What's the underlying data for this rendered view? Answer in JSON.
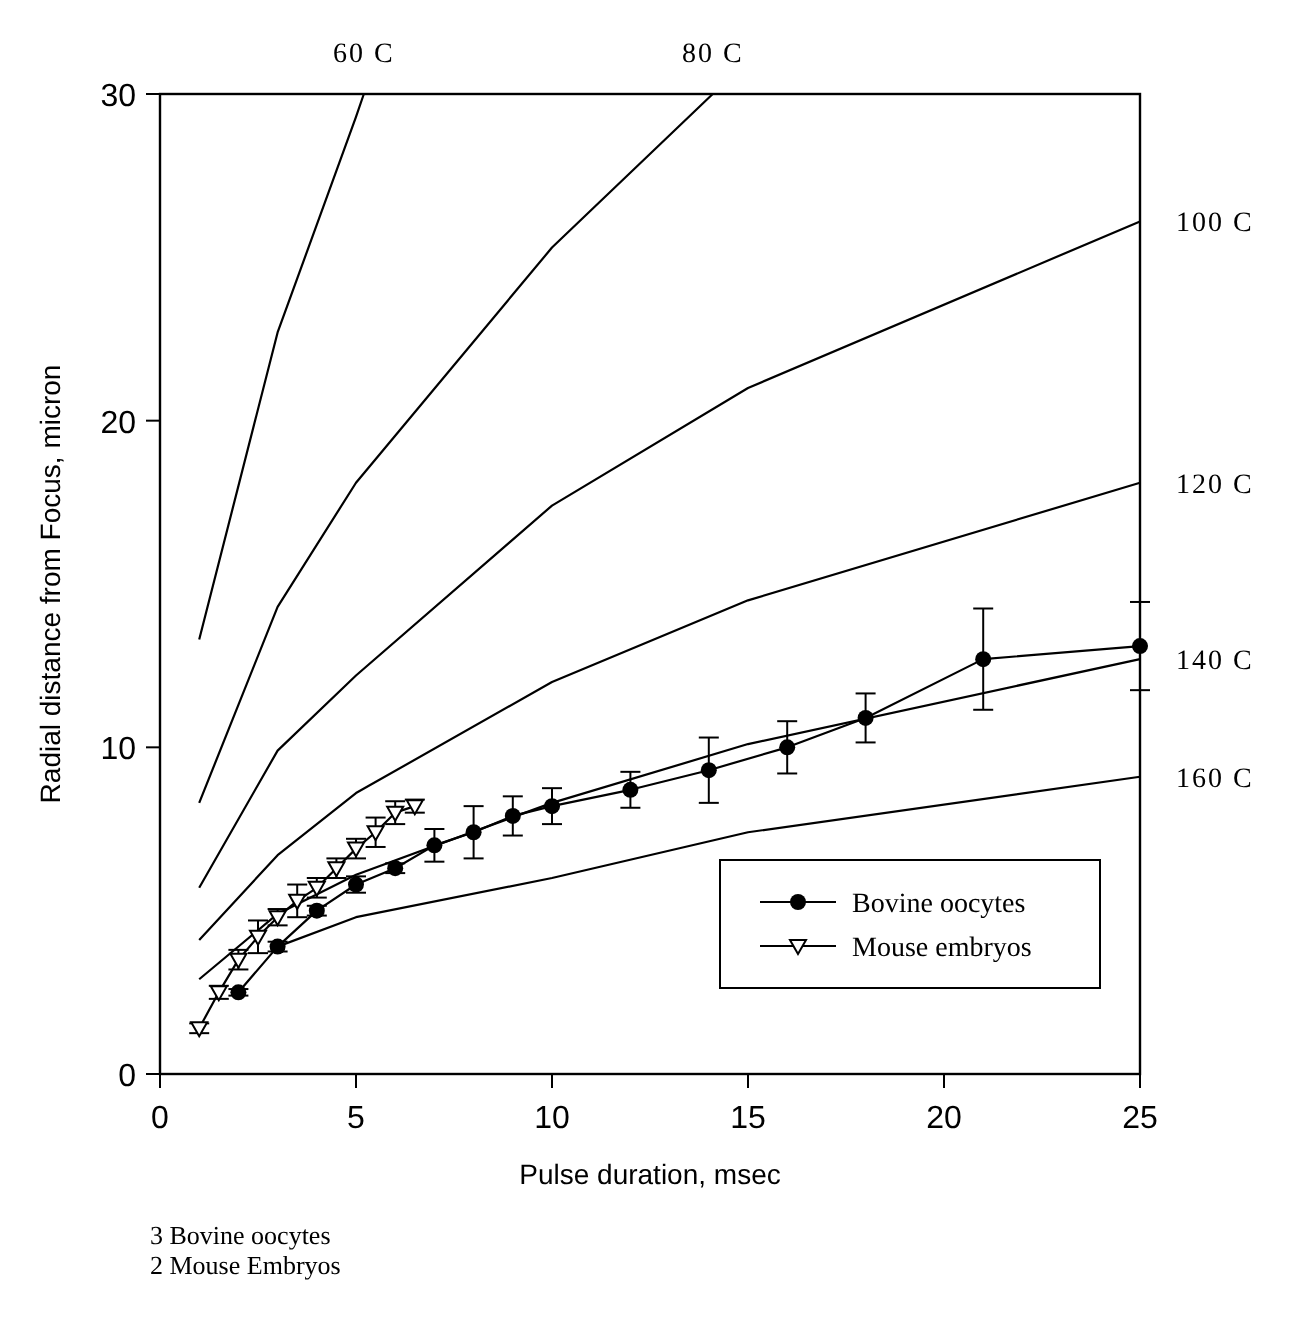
{
  "chart_data": {
    "type": "line",
    "xlabel": "Pulse duration, msec",
    "ylabel": "Radial distance from Focus, micron",
    "xlim": [
      0,
      25
    ],
    "ylim": [
      0,
      30
    ],
    "xticks": [
      0,
      5,
      10,
      15,
      20,
      25
    ],
    "yticks": [
      0,
      10,
      20,
      30
    ],
    "grid": false,
    "legend": "bottom right",
    "annotations": [
      "3 Bovine oocytes",
      "2 Mouse Embryos"
    ],
    "series": [
      {
        "name": "60 C",
        "color": "#000000",
        "marker": "none",
        "x": [
          1,
          3,
          5,
          5.2
        ],
        "values": [
          13.3,
          22.7,
          29.3,
          30
        ]
      },
      {
        "name": "80 C",
        "color": "#000000",
        "marker": "none",
        "x": [
          1,
          3,
          5,
          10,
          14.1
        ],
        "values": [
          8.3,
          14.3,
          18.1,
          25.3,
          30
        ]
      },
      {
        "name": "100 C",
        "color": "#000000",
        "marker": "none",
        "x": [
          1,
          3,
          5,
          10,
          15,
          25
        ],
        "values": [
          5.7,
          9.9,
          12.2,
          17.4,
          21.0,
          26.1
        ]
      },
      {
        "name": "120 C",
        "color": "#000000",
        "marker": "none",
        "x": [
          1,
          3,
          5,
          10,
          15,
          25
        ],
        "values": [
          4.1,
          6.7,
          8.6,
          12.0,
          14.5,
          18.1
        ]
      },
      {
        "name": "140 C",
        "color": "#000000",
        "marker": "none",
        "x": [
          1,
          3,
          5,
          10,
          15,
          25
        ],
        "values": [
          2.9,
          4.9,
          6.1,
          8.3,
          10.1,
          12.7
        ]
      },
      {
        "name": "160 C",
        "color": "#000000",
        "marker": "none",
        "x": [
          3,
          5,
          10,
          15,
          25
        ],
        "values": [
          3.9,
          4.8,
          6.0,
          7.4,
          9.1
        ]
      },
      {
        "name": "Bovine oocytes",
        "color": "#000000",
        "marker": "circle",
        "x": [
          2,
          3,
          4,
          5,
          6,
          7,
          8,
          9,
          10,
          12,
          14,
          16,
          18,
          21,
          25
        ],
        "values": [
          2.5,
          3.9,
          5.0,
          5.8,
          6.3,
          7.0,
          7.4,
          7.9,
          8.2,
          8.7,
          9.3,
          10.0,
          10.9,
          12.7,
          13.1
        ],
        "errors": [
          0.1,
          0.15,
          0.15,
          0.25,
          0.15,
          0.5,
          0.8,
          0.6,
          0.55,
          0.55,
          1.0,
          0.8,
          0.75,
          1.55,
          1.35
        ]
      },
      {
        "name": "Mouse embryos",
        "color": "#000000",
        "marker": "triangle",
        "x": [
          1,
          1.5,
          2,
          2.5,
          3,
          3.5,
          4,
          4.5,
          5,
          5.5,
          6,
          6.5
        ],
        "values": [
          1.4,
          2.5,
          3.5,
          4.2,
          4.8,
          5.3,
          5.7,
          6.3,
          6.9,
          7.4,
          8.0,
          8.2
        ],
        "errors": [
          0.15,
          0.2,
          0.3,
          0.5,
          0.25,
          0.5,
          0.3,
          0.3,
          0.3,
          0.45,
          0.35,
          0.2
        ]
      }
    ]
  }
}
